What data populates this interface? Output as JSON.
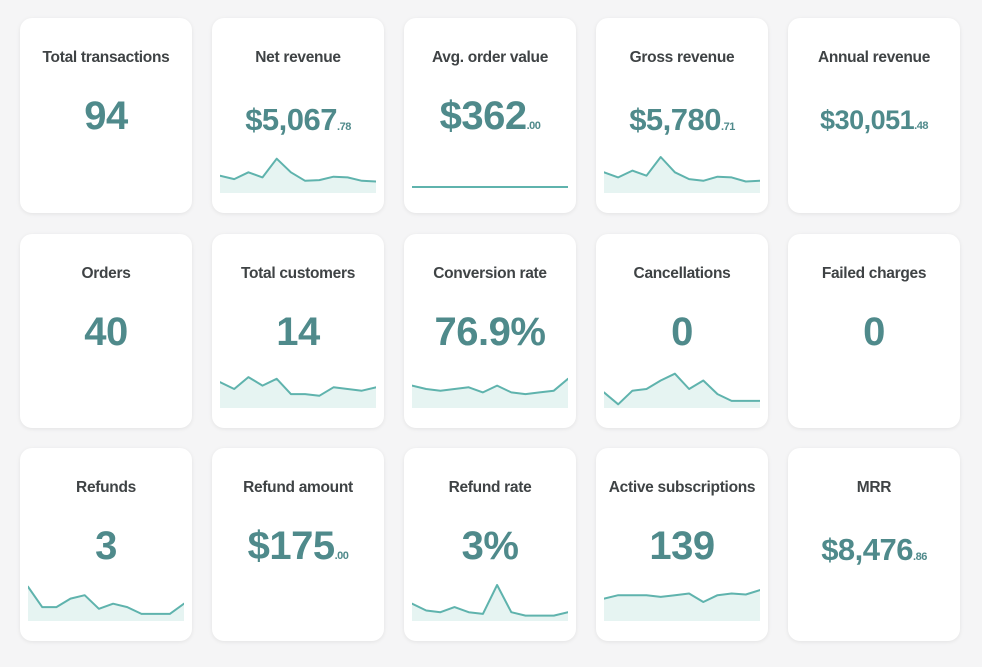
{
  "accent_color": "#4f8a8b",
  "sparkline_color": "#5fb3ad",
  "cards": [
    {
      "title": "Total transactions",
      "value": "94",
      "spark": null
    },
    {
      "title": "Net revenue",
      "value": "$5,067",
      "cents": ".78",
      "spark": [
        0.45,
        0.35,
        0.55,
        0.4,
        0.95,
        0.55,
        0.3,
        0.32,
        0.42,
        0.4,
        0.3,
        0.28
      ]
    },
    {
      "title": "Avg. order value",
      "value": "$362",
      "cents": ".00",
      "spark": [
        0.5,
        0.5,
        0.5,
        0.5,
        0.5,
        0.5,
        0.5,
        0.5,
        0.5,
        0.5,
        0.5
      ]
    },
    {
      "title": "Gross revenue",
      "value": "$5,780",
      "cents": ".71",
      "spark": [
        0.55,
        0.4,
        0.6,
        0.45,
        1.0,
        0.55,
        0.35,
        0.3,
        0.42,
        0.4,
        0.28,
        0.3
      ]
    },
    {
      "title": "Annual revenue",
      "value": "$30,051",
      "cents": ".48",
      "spark": null
    },
    {
      "title": "Orders",
      "value": "40",
      "spark": null
    },
    {
      "title": "Total customers",
      "value": "14",
      "spark": [
        0.7,
        0.5,
        0.85,
        0.6,
        0.8,
        0.35,
        0.35,
        0.3,
        0.55,
        0.5,
        0.45,
        0.55
      ]
    },
    {
      "title": "Conversion rate",
      "value": "76.9%",
      "spark": [
        0.6,
        0.5,
        0.45,
        0.5,
        0.55,
        0.4,
        0.6,
        0.4,
        0.35,
        0.4,
        0.45,
        0.8
      ]
    },
    {
      "title": "Cancellations",
      "value": "0",
      "spark": [
        0.4,
        0.05,
        0.45,
        0.5,
        0.75,
        0.95,
        0.5,
        0.75,
        0.35,
        0.15,
        0.15,
        0.15
      ]
    },
    {
      "title": "Failed charges",
      "value": "0",
      "spark": null
    },
    {
      "title": "Refunds",
      "value": "3",
      "spark": [
        0.95,
        0.35,
        0.35,
        0.6,
        0.7,
        0.3,
        0.45,
        0.35,
        0.15,
        0.15,
        0.15,
        0.45
      ]
    },
    {
      "title": "Refund amount",
      "value": "$175",
      "cents": ".00",
      "spark": null
    },
    {
      "title": "Refund rate",
      "value": "3%",
      "spark": [
        0.45,
        0.25,
        0.2,
        0.35,
        0.2,
        0.15,
        1.0,
        0.2,
        0.1,
        0.1,
        0.1,
        0.2
      ]
    },
    {
      "title": "Active subscriptions",
      "value": "139",
      "spark": [
        0.6,
        0.7,
        0.7,
        0.7,
        0.65,
        0.7,
        0.75,
        0.5,
        0.7,
        0.75,
        0.72,
        0.85
      ]
    },
    {
      "title": "MRR",
      "value": "$8,476",
      "cents": ".86",
      "spark": null
    }
  ]
}
